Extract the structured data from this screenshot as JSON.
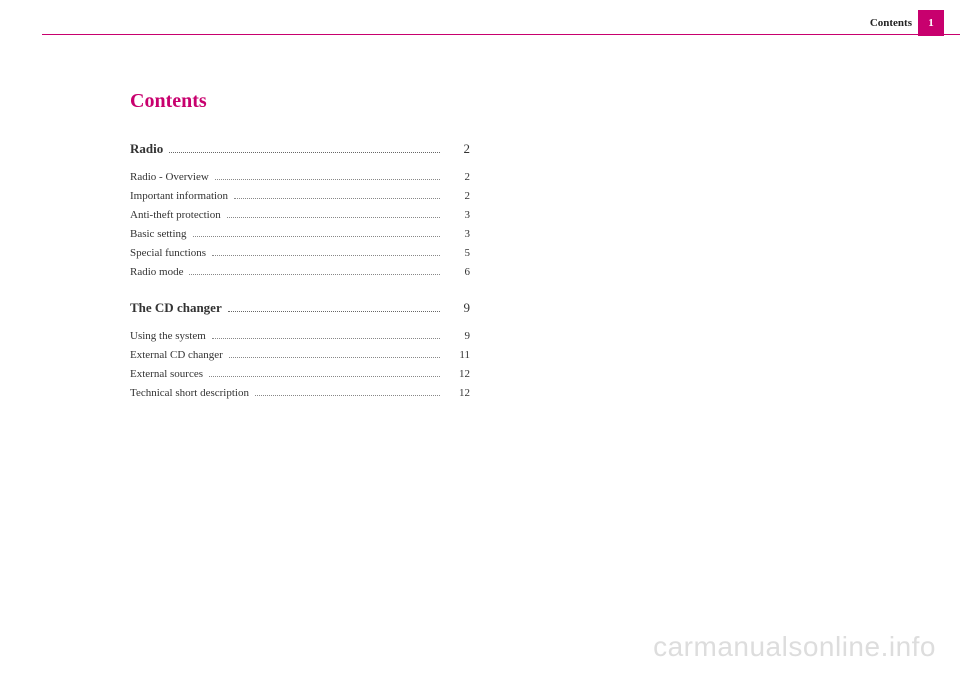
{
  "header": {
    "section_label": "Contents",
    "page_number": "1"
  },
  "title": "Contents",
  "toc": [
    {
      "label": "Radio",
      "page": "2",
      "is_section": true
    },
    {
      "label": "Radio - Overview",
      "page": "2",
      "is_section": false
    },
    {
      "label": "Important information",
      "page": "2",
      "is_section": false
    },
    {
      "label": "Anti-theft protection",
      "page": "3",
      "is_section": false
    },
    {
      "label": "Basic setting",
      "page": "3",
      "is_section": false
    },
    {
      "label": "Special functions",
      "page": "5",
      "is_section": false
    },
    {
      "label": "Radio mode",
      "page": "6",
      "is_section": false
    },
    {
      "label": "The CD changer",
      "page": "9",
      "is_section": true
    },
    {
      "label": "Using the system",
      "page": "9",
      "is_section": false
    },
    {
      "label": "External CD changer",
      "page": "11",
      "is_section": false
    },
    {
      "label": "External sources",
      "page": "12",
      "is_section": false
    },
    {
      "label": "Technical short description",
      "page": "12",
      "is_section": false
    }
  ],
  "watermark": "carmanualsonline.info",
  "colors": {
    "accent": "#c8006e",
    "text": "#333333",
    "watermark": "#dddddd"
  }
}
